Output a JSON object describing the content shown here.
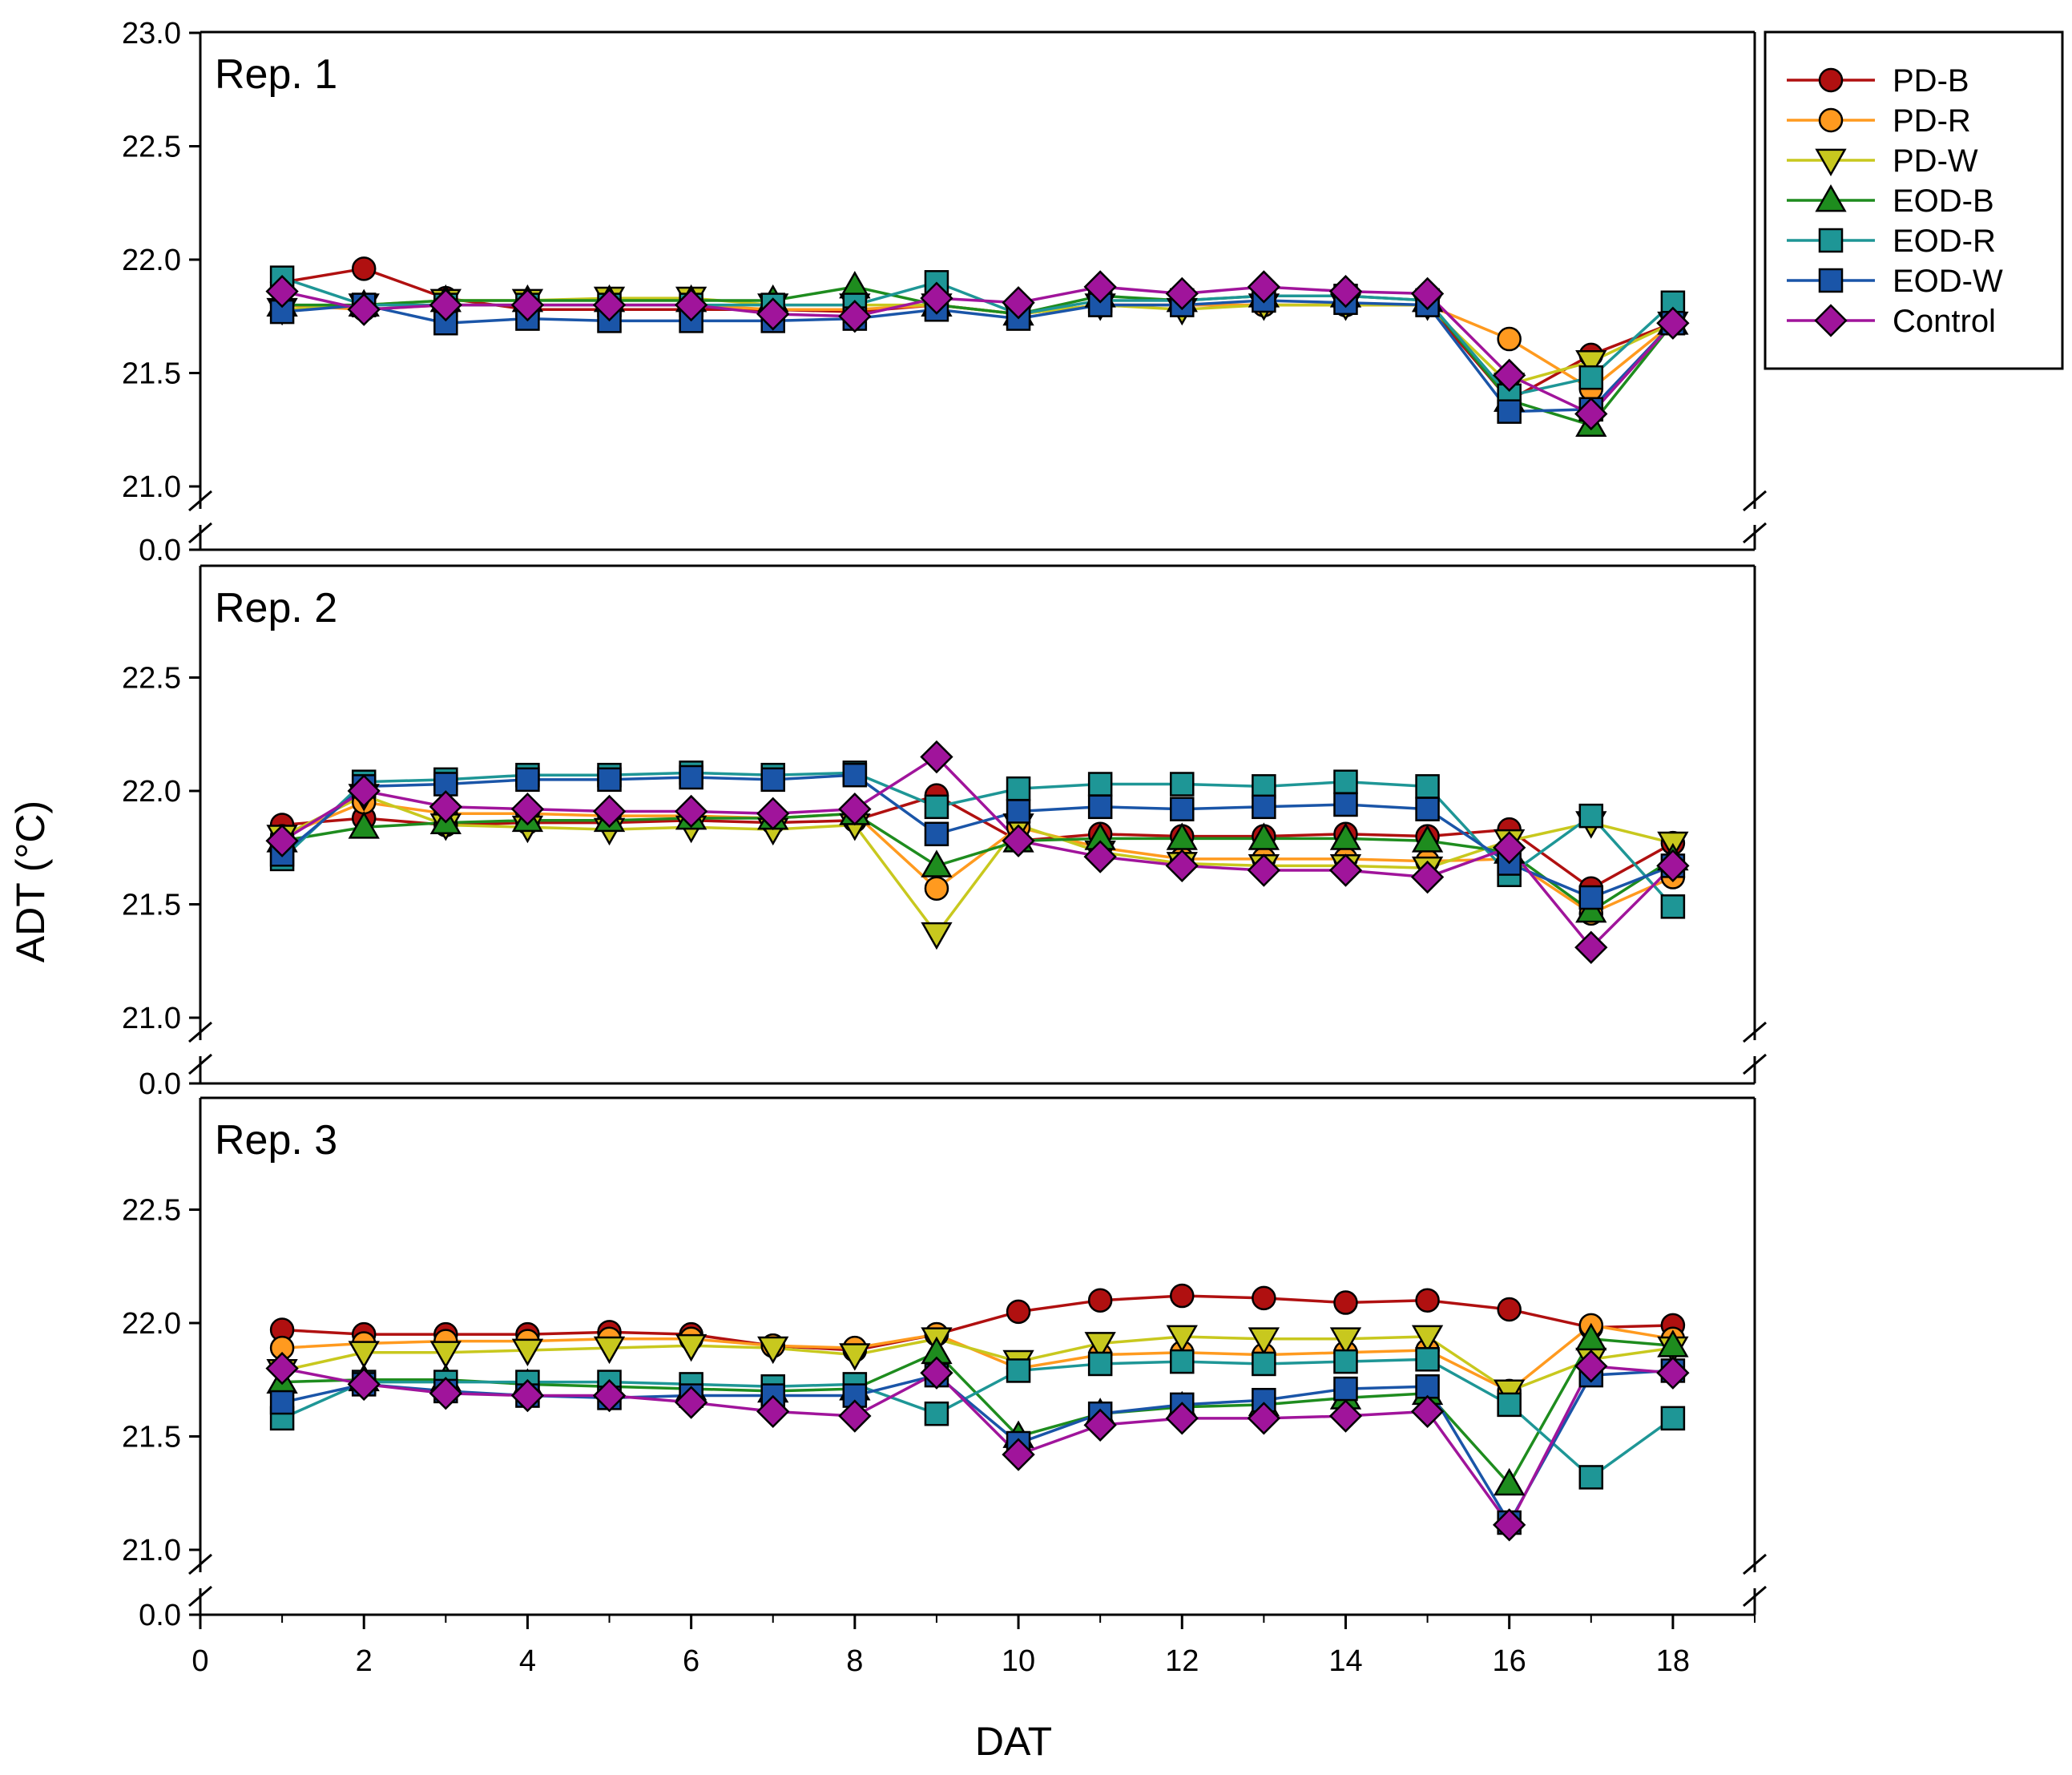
{
  "chart_data": {
    "type": "line",
    "xlabel": "DAT",
    "ylabel": "ADT (°C)",
    "xlim": [
      0,
      19
    ],
    "x_ticks": [
      0,
      2,
      4,
      6,
      8,
      10,
      12,
      14,
      16,
      18
    ],
    "x": [
      1,
      2,
      3,
      4,
      5,
      6,
      7,
      8,
      9,
      10,
      11,
      12,
      13,
      14,
      15,
      16,
      17,
      18
    ],
    "y_broken_axis": {
      "low_tick": 0.0,
      "range": [
        21.0,
        23.0
      ]
    },
    "legend": {
      "position": "top-right, outside plot",
      "entries": [
        {
          "name": "PD-B",
          "marker": "circle",
          "color": "#b01010"
        },
        {
          "name": "PD-R",
          "marker": "circle",
          "color": "#ff9a1f"
        },
        {
          "name": "PD-W",
          "marker": "triangle-down",
          "color": "#c8c81e"
        },
        {
          "name": "EOD-B",
          "marker": "triangle-up",
          "color": "#1e8c1e"
        },
        {
          "name": "EOD-R",
          "marker": "square",
          "color": "#1e9696"
        },
        {
          "name": "EOD-W",
          "marker": "square",
          "color": "#1a55a8"
        },
        {
          "name": "Control",
          "marker": "diamond",
          "color": "#a0149b"
        }
      ]
    },
    "panels": [
      {
        "title": "Rep. 1",
        "y_ticks": [
          "23.0",
          "22.5",
          "22.0",
          "21.5",
          "21.0",
          "0.0"
        ],
        "series": [
          {
            "name": "PD-B",
            "values": [
              21.9,
              21.96,
              21.83,
              21.78,
              21.78,
              21.78,
              21.78,
              21.77,
              21.8,
              21.76,
              21.8,
              21.8,
              21.8,
              21.8,
              21.8,
              21.38,
              21.58,
              21.72
            ]
          },
          {
            "name": "PD-R",
            "values": [
              21.8,
              21.78,
              21.8,
              21.8,
              21.8,
              21.8,
              21.78,
              21.78,
              21.8,
              21.76,
              21.8,
              21.8,
              21.8,
              21.8,
              21.8,
              21.65,
              21.43,
              21.72
            ]
          },
          {
            "name": "PD-W",
            "values": [
              21.78,
              21.8,
              21.82,
              21.82,
              21.83,
              21.83,
              21.8,
              21.8,
              21.8,
              21.76,
              21.8,
              21.78,
              21.8,
              21.8,
              21.8,
              21.45,
              21.55,
              21.72
            ]
          },
          {
            "name": "EOD-B",
            "values": [
              21.8,
              21.8,
              21.82,
              21.82,
              21.82,
              21.82,
              21.82,
              21.88,
              21.8,
              21.76,
              21.84,
              21.82,
              21.84,
              21.84,
              21.82,
              21.38,
              21.27,
              21.72
            ]
          },
          {
            "name": "EOD-R",
            "values": [
              21.92,
              21.8,
              21.8,
              21.8,
              21.8,
              21.8,
              21.8,
              21.8,
              21.9,
              21.76,
              21.82,
              21.82,
              21.84,
              21.84,
              21.82,
              21.4,
              21.48,
              21.81
            ]
          },
          {
            "name": "EOD-W",
            "values": [
              21.77,
              21.8,
              21.72,
              21.74,
              21.73,
              21.73,
              21.73,
              21.74,
              21.78,
              21.74,
              21.8,
              21.8,
              21.82,
              21.81,
              21.8,
              21.33,
              21.34,
              21.72
            ]
          },
          {
            "name": "Control",
            "values": [
              21.86,
              21.78,
              21.8,
              21.8,
              21.8,
              21.8,
              21.76,
              21.75,
              21.83,
              21.81,
              21.88,
              21.85,
              21.88,
              21.86,
              21.85,
              21.49,
              21.32,
              21.72
            ]
          }
        ]
      },
      {
        "title": "Rep. 2",
        "y_ticks": [
          "22.5",
          "22.0",
          "21.5",
          "21.0",
          "0.0"
        ],
        "series": [
          {
            "name": "PD-B",
            "values": [
              21.85,
              21.88,
              21.85,
              21.86,
              21.86,
              21.87,
              21.86,
              21.87,
              21.98,
              21.78,
              21.81,
              21.8,
              21.8,
              21.81,
              21.8,
              21.83,
              21.57,
              21.77
            ]
          },
          {
            "name": "PD-R",
            "values": [
              21.8,
              21.95,
              21.9,
              21.9,
              21.89,
              21.89,
              21.88,
              21.9,
              21.57,
              21.84,
              21.75,
              21.7,
              21.7,
              21.7,
              21.69,
              21.7,
              21.46,
              21.62
            ]
          },
          {
            "name": "PD-W",
            "values": [
              21.8,
              21.98,
              21.85,
              21.84,
              21.83,
              21.84,
              21.83,
              21.85,
              21.37,
              21.85,
              21.73,
              21.68,
              21.67,
              21.67,
              21.66,
              21.78,
              21.86,
              21.77
            ]
          },
          {
            "name": "EOD-B",
            "values": [
              21.78,
              21.84,
              21.86,
              21.87,
              21.87,
              21.88,
              21.88,
              21.9,
              21.67,
              21.78,
              21.79,
              21.79,
              21.79,
              21.79,
              21.78,
              21.73,
              21.47,
              21.7
            ]
          },
          {
            "name": "EOD-R",
            "values": [
              21.7,
              22.04,
              22.05,
              22.07,
              22.07,
              22.08,
              22.07,
              22.08,
              21.93,
              22.01,
              22.03,
              22.03,
              22.02,
              22.04,
              22.02,
              21.63,
              21.89,
              21.49
            ]
          },
          {
            "name": "EOD-W",
            "values": [
              21.72,
              22.02,
              22.03,
              22.05,
              22.05,
              22.06,
              22.05,
              22.07,
              21.81,
              21.91,
              21.93,
              21.92,
              21.93,
              21.94,
              21.92,
              21.68,
              21.53,
              21.67
            ]
          },
          {
            "name": "Control",
            "values": [
              21.78,
              22.0,
              21.93,
              21.92,
              21.91,
              21.91,
              21.9,
              21.92,
              22.15,
              21.78,
              21.71,
              21.67,
              21.65,
              21.65,
              21.62,
              21.75,
              21.31,
              21.67
            ]
          }
        ]
      },
      {
        "title": "Rep. 3",
        "y_ticks": [
          "22.5",
          "22.0",
          "21.5",
          "21.0",
          "0.0"
        ],
        "series": [
          {
            "name": "PD-B",
            "values": [
              21.97,
              21.95,
              21.95,
              21.95,
              21.96,
              21.95,
              21.9,
              21.88,
              21.95,
              22.05,
              22.1,
              22.12,
              22.11,
              22.09,
              22.1,
              22.06,
              21.98,
              21.99
            ]
          },
          {
            "name": "PD-R",
            "values": [
              21.89,
              21.91,
              21.92,
              21.92,
              21.93,
              21.93,
              21.9,
              21.89,
              21.95,
              21.8,
              21.86,
              21.87,
              21.86,
              21.87,
              21.88,
              21.7,
              21.99,
              21.93
            ]
          },
          {
            "name": "PD-W",
            "values": [
              21.79,
              21.87,
              21.87,
              21.88,
              21.89,
              21.9,
              21.89,
              21.86,
              21.93,
              21.83,
              21.91,
              21.94,
              21.93,
              21.93,
              21.94,
              21.7,
              21.84,
              21.89
            ]
          },
          {
            "name": "EOD-B",
            "values": [
              21.74,
              21.75,
              21.75,
              21.73,
              21.72,
              21.71,
              21.7,
              21.71,
              21.87,
              21.5,
              21.6,
              21.63,
              21.64,
              21.67,
              21.69,
              21.29,
              21.93,
              21.9
            ]
          },
          {
            "name": "EOD-R",
            "values": [
              21.58,
              21.74,
              21.74,
              21.74,
              21.74,
              21.73,
              21.72,
              21.73,
              21.6,
              21.79,
              21.82,
              21.83,
              21.82,
              21.83,
              21.84,
              21.64,
              21.32,
              21.58
            ]
          },
          {
            "name": "EOD-W",
            "values": [
              21.65,
              21.73,
              21.7,
              21.68,
              21.67,
              21.68,
              21.68,
              21.68,
              21.77,
              21.47,
              21.6,
              21.64,
              21.66,
              21.71,
              21.72,
              21.12,
              21.77,
              21.79
            ]
          },
          {
            "name": "Control",
            "values": [
              21.8,
              21.73,
              21.69,
              21.68,
              21.68,
              21.65,
              21.61,
              21.59,
              21.78,
              21.42,
              21.55,
              21.58,
              21.58,
              21.59,
              21.61,
              21.11,
              21.81,
              21.78
            ]
          }
        ]
      }
    ]
  }
}
